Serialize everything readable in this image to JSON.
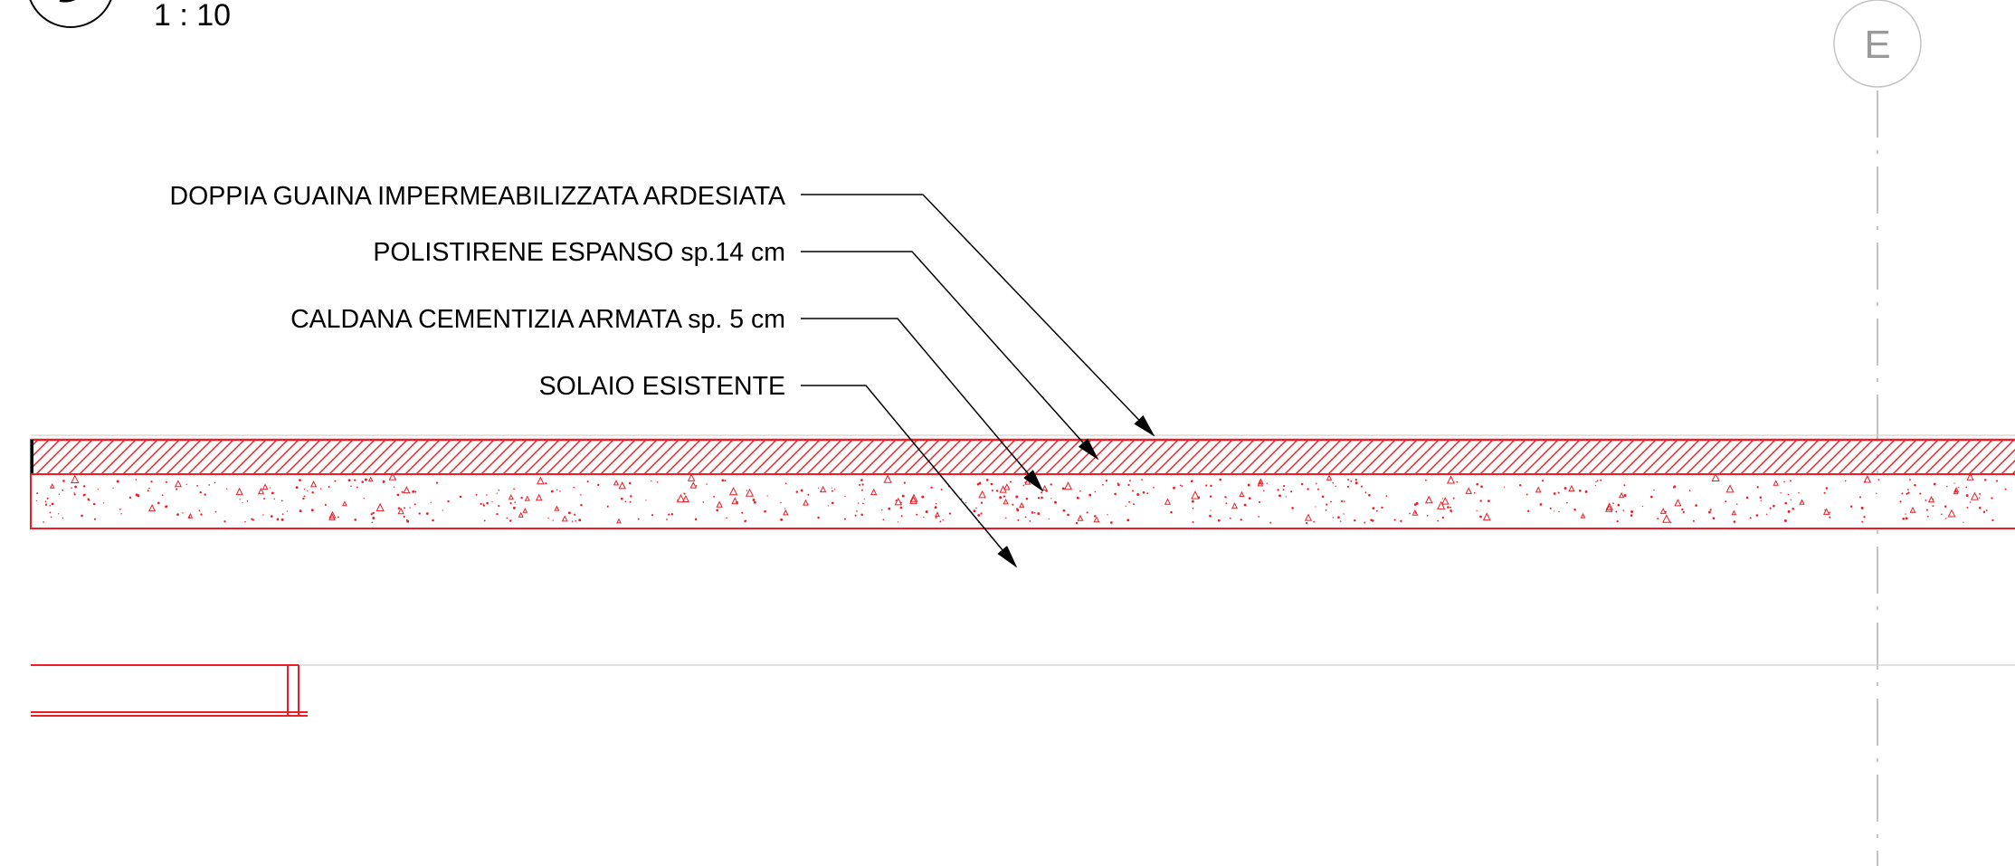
{
  "view": {
    "scale_text": "1 : 10"
  },
  "grid": {
    "label": "E"
  },
  "annotations": [
    {
      "id": "membrane",
      "text": "DOPPIA GUAINA IMPERMEABILIZZATA ARDESIATA"
    },
    {
      "id": "insulation",
      "text": "POLISTIRENE ESPANSO sp.14 cm"
    },
    {
      "id": "screed",
      "text": "CALDANA CEMENTIZIA ARMATA sp. 5 cm"
    },
    {
      "id": "slab",
      "text": "SOLAIO ESISTENTE"
    }
  ],
  "colors": {
    "section": "#ee1c25",
    "leader": "#000000",
    "grid": "#b8b8b8",
    "hairline": "#cccccc"
  }
}
